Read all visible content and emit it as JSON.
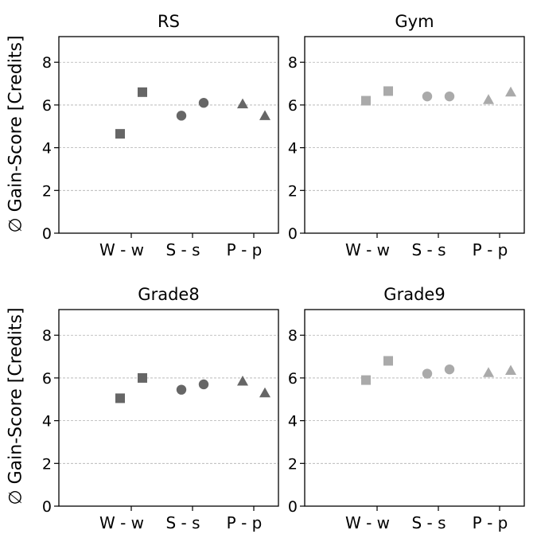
{
  "ylabel": "∅ Gain-Score [Credits]",
  "chart_data": [
    {
      "type": "scatter",
      "title": "RS",
      "color": "#666666",
      "categories": [
        "W - w",
        "S - s",
        "P - p"
      ],
      "ylim": [
        0,
        9.2
      ],
      "yticks": [
        0,
        2,
        4,
        6,
        8
      ],
      "grid": true,
      "points": [
        {
          "category": "W - w",
          "slot": "left",
          "marker": "square",
          "y": 4.65
        },
        {
          "category": "W - w",
          "slot": "right",
          "marker": "square",
          "y": 6.6
        },
        {
          "category": "S - s",
          "slot": "left",
          "marker": "circle",
          "y": 5.5
        },
        {
          "category": "S - s",
          "slot": "right",
          "marker": "circle",
          "y": 6.1
        },
        {
          "category": "P - p",
          "slot": "left",
          "marker": "triangle",
          "y": 6.05
        },
        {
          "category": "P - p",
          "slot": "right",
          "marker": "triangle",
          "y": 5.5
        }
      ]
    },
    {
      "type": "scatter",
      "title": "Gym",
      "color": "#aaaaaa",
      "categories": [
        "W - w",
        "S - s",
        "P - p"
      ],
      "ylim": [
        0,
        9.2
      ],
      "yticks": [
        0,
        2,
        4,
        6,
        8
      ],
      "grid": true,
      "points": [
        {
          "category": "W - w",
          "slot": "left",
          "marker": "square",
          "y": 6.2
        },
        {
          "category": "W - w",
          "slot": "right",
          "marker": "square",
          "y": 6.65
        },
        {
          "category": "S - s",
          "slot": "left",
          "marker": "circle",
          "y": 6.4
        },
        {
          "category": "S - s",
          "slot": "right",
          "marker": "circle",
          "y": 6.4
        },
        {
          "category": "P - p",
          "slot": "left",
          "marker": "triangle",
          "y": 6.25
        },
        {
          "category": "P - p",
          "slot": "right",
          "marker": "triangle",
          "y": 6.6
        }
      ]
    },
    {
      "type": "scatter",
      "title": "Grade8",
      "color": "#666666",
      "categories": [
        "W - w",
        "S - s",
        "P - p"
      ],
      "ylim": [
        0,
        9.2
      ],
      "yticks": [
        0,
        2,
        4,
        6,
        8
      ],
      "grid": true,
      "points": [
        {
          "category": "W - w",
          "slot": "left",
          "marker": "square",
          "y": 5.05
        },
        {
          "category": "W - w",
          "slot": "right",
          "marker": "square",
          "y": 6.0
        },
        {
          "category": "S - s",
          "slot": "left",
          "marker": "circle",
          "y": 5.45
        },
        {
          "category": "S - s",
          "slot": "right",
          "marker": "circle",
          "y": 5.7
        },
        {
          "category": "P - p",
          "slot": "left",
          "marker": "triangle",
          "y": 5.85
        },
        {
          "category": "P - p",
          "slot": "right",
          "marker": "triangle",
          "y": 5.3
        }
      ]
    },
    {
      "type": "scatter",
      "title": "Grade9",
      "color": "#aaaaaa",
      "categories": [
        "W - w",
        "S - s",
        "P - p"
      ],
      "ylim": [
        0,
        9.2
      ],
      "yticks": [
        0,
        2,
        4,
        6,
        8
      ],
      "grid": true,
      "points": [
        {
          "category": "W - w",
          "slot": "left",
          "marker": "square",
          "y": 5.9
        },
        {
          "category": "W - w",
          "slot": "right",
          "marker": "square",
          "y": 6.8
        },
        {
          "category": "S - s",
          "slot": "left",
          "marker": "circle",
          "y": 6.2
        },
        {
          "category": "S - s",
          "slot": "right",
          "marker": "circle",
          "y": 6.4
        },
        {
          "category": "P - p",
          "slot": "left",
          "marker": "triangle",
          "y": 6.25
        },
        {
          "category": "P - p",
          "slot": "right",
          "marker": "triangle",
          "y": 6.35
        }
      ]
    }
  ]
}
